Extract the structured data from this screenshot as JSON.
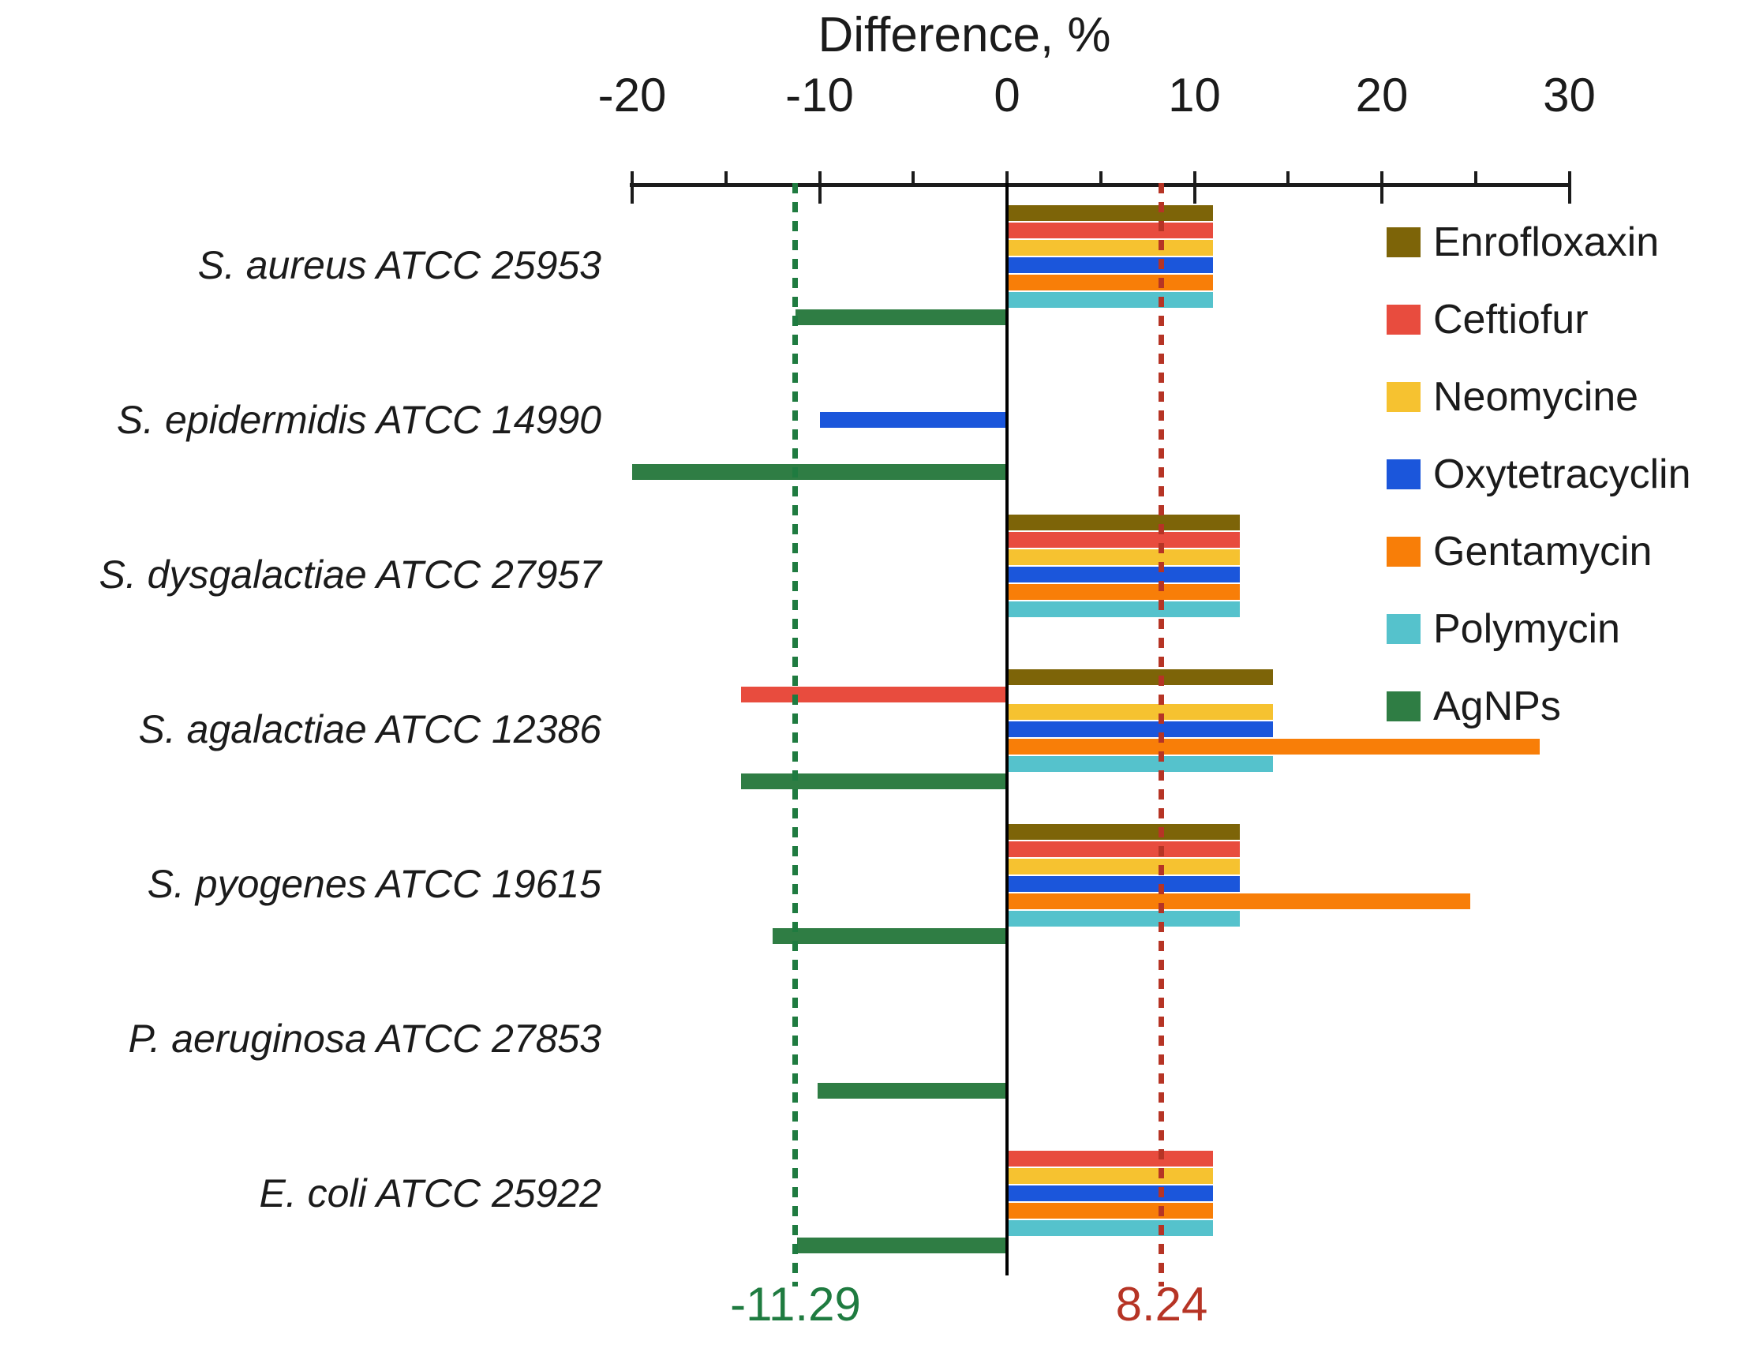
{
  "chart_data": {
    "type": "bar",
    "orientation": "horizontal",
    "title": "Difference, %",
    "categories": [
      "S. aureus ATCC 25953",
      "S. epidermidis ATCC 14990",
      "S. dysgalactiae ATCC 27957",
      "S. agalactiae ATCC 12386",
      "S. pyogenes ATCC 19615",
      "P. aeruginosa ATCC 27853",
      "E. coli ATCC 25922"
    ],
    "series": [
      {
        "name": "Enrofloxaxin",
        "color": "#7d6408",
        "values": [
          11,
          0,
          12.4,
          14.2,
          12.4,
          0,
          0
        ]
      },
      {
        "name": "Ceftiofur",
        "color": "#e84c3e",
        "values": [
          11,
          0,
          12.4,
          -14.2,
          12.4,
          0,
          11
        ]
      },
      {
        "name": "Neomycine",
        "color": "#f6c230",
        "values": [
          11,
          0,
          12.4,
          14.2,
          12.4,
          0,
          11
        ]
      },
      {
        "name": "Oxytetracyclin",
        "color": "#1b56db",
        "values": [
          11,
          -10,
          12.4,
          14.2,
          12.4,
          0,
          11
        ]
      },
      {
        "name": "Gentamycin",
        "color": "#f87e08",
        "values": [
          11,
          0,
          12.4,
          28.4,
          24.7,
          0,
          11
        ]
      },
      {
        "name": "Polymycin",
        "color": "#55c2cc",
        "values": [
          11,
          0,
          12.4,
          14.2,
          12.4,
          0,
          11
        ]
      },
      {
        "name": "AgNPs",
        "color": "#2f7d44",
        "values": [
          -11.3,
          -20,
          0,
          -14.2,
          -12.5,
          -10.1,
          -11.2
        ]
      }
    ],
    "x_axis": {
      "min": -20,
      "max": 30,
      "major_tick_values": [
        -20,
        -10,
        0,
        10,
        20,
        30
      ],
      "major_tick_labels": [
        "-20",
        "-10",
        "0",
        "10",
        "20",
        "30"
      ],
      "minor_tick_values": [
        -15,
        -5,
        5,
        15,
        25
      ]
    },
    "reference_lines": [
      {
        "value": -11.29,
        "label": "-11.29",
        "color": "#1f7b40"
      },
      {
        "value": 8.24,
        "label": "8.24",
        "color": "#b63425"
      }
    ],
    "legend_position": "right",
    "grid": false
  }
}
